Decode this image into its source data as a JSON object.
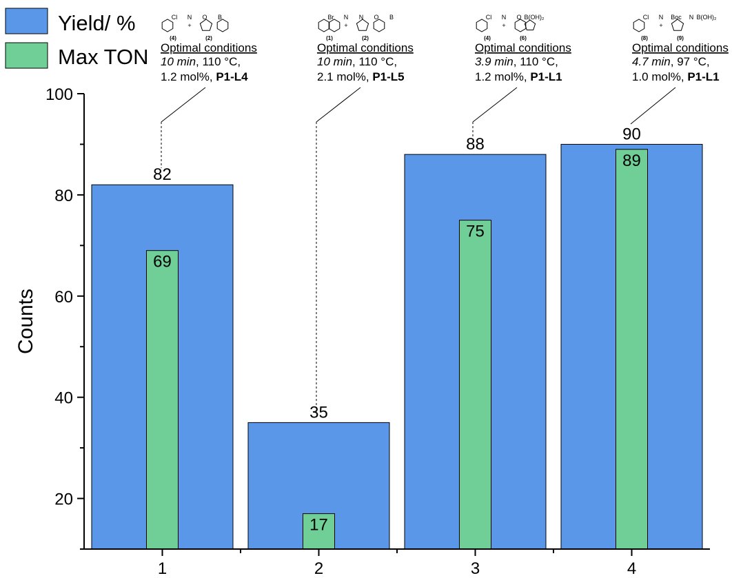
{
  "chart_data": {
    "type": "bar",
    "categories": [
      "1",
      "2",
      "3",
      "4"
    ],
    "series": [
      {
        "name": "Yield/ %",
        "values": [
          82,
          35,
          88,
          90
        ],
        "color": "#5b97e8"
      },
      {
        "name": "Max TON",
        "values": [
          69,
          17,
          75,
          89
        ],
        "color": "#6fcf97"
      }
    ],
    "ylabel": "Counts",
    "xlabel": "",
    "ylim": [
      10,
      100
    ],
    "yticks": [
      20,
      40,
      60,
      80,
      100
    ],
    "grid": false,
    "legend_position": "top-left",
    "annotations": [
      {
        "category": "1",
        "heading": "Optimal conditions",
        "time": "10 min",
        "temp": ", 110 °C,",
        "loading": "1.2 mol%, ",
        "catalyst": "P1-L4",
        "reactant_labels": [
          "(4)",
          "(2)"
        ],
        "reactant_text": [
          "Cl",
          "N",
          "O",
          "B"
        ]
      },
      {
        "category": "2",
        "heading": "Optimal conditions",
        "time": "10 min",
        "temp": ", 110 °C,",
        "loading": "2.1 mol%, ",
        "catalyst": "P1-L5",
        "reactant_labels": [
          "(1)",
          "(2)"
        ],
        "reactant_text": [
          "Br",
          "N",
          "N",
          "O",
          "B"
        ]
      },
      {
        "category": "3",
        "heading": "Optimal conditions",
        "time": "3.9 min",
        "temp": ", 110 °C,",
        "loading": "1.2 mol%, ",
        "catalyst": "P1-L1",
        "reactant_labels": [
          "(4)",
          "(6)"
        ],
        "reactant_text": [
          "Cl",
          "N",
          "O",
          "B(OH)₂"
        ]
      },
      {
        "category": "4",
        "heading": "Optimal conditions",
        "time": "4.7 min",
        "temp": ", 97 °C,",
        "loading": "1.0 mol%, ",
        "catalyst": "P1-L1",
        "reactant_labels": [
          "(8)",
          "(9)"
        ],
        "reactant_text": [
          "Cl",
          "N",
          "Boc",
          "N",
          "B(OH)₂"
        ]
      }
    ]
  }
}
